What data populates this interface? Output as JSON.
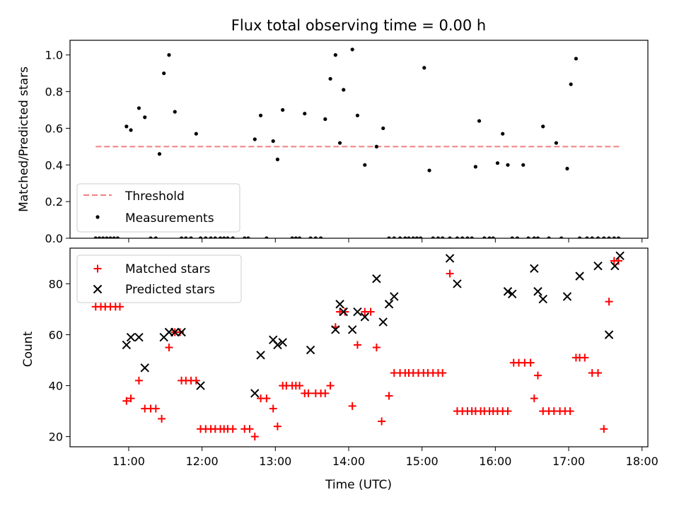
{
  "chart_data": [
    {
      "type": "scatter",
      "title": "Flux total observing time = 0.00 h",
      "xlabel": "",
      "ylabel": "Matched/Predicted stars",
      "xlim": [
        10.2,
        18.08
      ],
      "ylim": [
        0,
        1.08
      ],
      "x_ticks": [
        11,
        12,
        13,
        14,
        15,
        16,
        17,
        18
      ],
      "y_ticks": [
        0.0,
        0.2,
        0.4,
        0.6,
        0.8,
        1.0
      ],
      "y_tick_labels": [
        "0.0",
        "0.2",
        "0.4",
        "0.6",
        "0.8",
        "1.0"
      ],
      "legend_position": "lower-left",
      "threshold": {
        "name": "Threshold",
        "value": 0.5,
        "x_range": [
          10.55,
          17.72
        ],
        "color": "#f08080"
      },
      "series": [
        {
          "name": "Measurements",
          "color": "#000000",
          "x": [
            10.55,
            10.6,
            10.65,
            10.7,
            10.75,
            10.8,
            10.85,
            10.97,
            11.03,
            11.14,
            11.22,
            11.3,
            11.37,
            11.42,
            11.48,
            11.55,
            11.63,
            11.72,
            11.78,
            11.85,
            11.92,
            11.98,
            12.05,
            12.12,
            12.18,
            12.25,
            12.3,
            12.35,
            12.42,
            12.58,
            12.63,
            12.72,
            12.8,
            12.88,
            12.97,
            13.03,
            13.1,
            13.23,
            13.28,
            13.33,
            13.4,
            13.48,
            13.55,
            13.62,
            13.68,
            13.75,
            13.82,
            13.88,
            13.93,
            14.05,
            14.12,
            14.22,
            14.38,
            14.47,
            14.55,
            14.62,
            14.7,
            14.77,
            14.82,
            14.88,
            14.93,
            14.98,
            15.03,
            15.1,
            15.15,
            15.22,
            15.28,
            15.38,
            15.48,
            15.55,
            15.62,
            15.68,
            15.73,
            15.78,
            15.85,
            15.92,
            15.97,
            16.03,
            16.1,
            16.17,
            16.23,
            16.3,
            16.38,
            16.45,
            16.53,
            16.58,
            16.65,
            16.73,
            16.83,
            16.9,
            16.98,
            17.03,
            17.1,
            17.15,
            17.25,
            17.32,
            17.4,
            17.48,
            17.55,
            17.62,
            17.68
          ],
          "y": [
            0,
            0,
            0,
            0,
            0,
            0,
            0,
            0.61,
            0.59,
            0.71,
            0.66,
            0,
            0,
            0.46,
            0.9,
            1.0,
            0.69,
            0,
            0,
            0,
            0.57,
            0,
            0,
            0,
            0,
            0,
            0,
            0,
            0,
            0,
            0,
            0.54,
            0.67,
            0,
            0.53,
            0.43,
            0.7,
            0,
            0,
            0,
            0.68,
            0,
            0,
            0,
            0.65,
            0.87,
            1.0,
            0.52,
            0.81,
            1.03,
            0.67,
            0.4,
            0.5,
            0.6,
            0,
            0,
            0,
            0,
            0,
            0,
            0,
            0,
            0.93,
            0.37,
            0,
            0,
            0,
            0,
            0,
            0,
            0,
            0,
            0.39,
            0.64,
            0,
            0,
            0,
            0.41,
            0.57,
            0.4,
            0,
            0,
            0.4,
            0,
            0,
            0,
            0.61,
            0,
            0.52,
            0,
            0.38,
            0.84,
            0.98,
            0,
            0,
            0,
            0,
            0,
            0,
            0,
            0
          ]
        }
      ]
    },
    {
      "type": "scatter",
      "title": "",
      "xlabel": "Time (UTC)",
      "ylabel": "Count",
      "xlim": [
        10.2,
        18.08
      ],
      "ylim": [
        16,
        94
      ],
      "x_ticks": [
        11,
        12,
        13,
        14,
        15,
        16,
        17,
        18
      ],
      "x_tick_labels": [
        "11:00",
        "12:00",
        "13:00",
        "14:00",
        "15:00",
        "16:00",
        "17:00",
        "18:00"
      ],
      "y_ticks": [
        20,
        40,
        60,
        80
      ],
      "y_tick_labels": [
        "20",
        "40",
        "60",
        "80"
      ],
      "legend_position": "upper-left",
      "series": [
        {
          "name": "Matched stars",
          "marker": "plus",
          "color": "#ff0000",
          "x": [
            10.55,
            10.62,
            10.68,
            10.75,
            10.82,
            10.88,
            10.97,
            11.03,
            11.14,
            11.22,
            11.3,
            11.37,
            11.45,
            11.55,
            11.63,
            11.7,
            11.72,
            11.78,
            11.85,
            11.92,
            11.98,
            12.05,
            12.12,
            12.18,
            12.25,
            12.3,
            12.35,
            12.42,
            12.58,
            12.65,
            12.72,
            12.8,
            12.88,
            12.97,
            13.03,
            13.1,
            13.15,
            13.23,
            13.28,
            13.33,
            13.4,
            13.45,
            13.55,
            13.62,
            13.68,
            13.75,
            13.82,
            13.88,
            13.95,
            14.05,
            14.12,
            14.22,
            14.3,
            14.38,
            14.45,
            14.55,
            14.62,
            14.7,
            14.77,
            14.82,
            14.88,
            14.95,
            15.02,
            15.08,
            15.15,
            15.22,
            15.28,
            15.38,
            15.48,
            15.55,
            15.62,
            15.68,
            15.73,
            15.8,
            15.85,
            15.92,
            15.97,
            16.03,
            16.1,
            16.17,
            16.25,
            16.32,
            16.4,
            16.48,
            16.53,
            16.58,
            16.65,
            16.73,
            16.8,
            16.88,
            16.95,
            17.02,
            17.1,
            17.15,
            17.22,
            17.32,
            17.4,
            17.48,
            17.55,
            17.62,
            17.68
          ],
          "y": [
            71,
            71,
            71,
            71,
            71,
            71,
            34,
            35,
            42,
            31,
            31,
            31,
            27,
            55,
            61,
            61,
            42,
            42,
            42,
            42,
            23,
            23,
            23,
            23,
            23,
            23,
            23,
            23,
            23,
            23,
            20,
            35,
            35,
            31,
            24,
            40,
            40,
            40,
            40,
            40,
            37,
            37,
            37,
            37,
            37,
            40,
            63,
            69,
            69,
            32,
            56,
            69,
            69,
            55,
            26,
            36,
            45,
            45,
            45,
            45,
            45,
            45,
            45,
            45,
            45,
            45,
            45,
            84,
            30,
            30,
            30,
            30,
            30,
            30,
            30,
            30,
            30,
            30,
            30,
            30,
            49,
            49,
            49,
            49,
            35,
            44,
            30,
            30,
            30,
            30,
            30,
            30,
            51,
            51,
            51,
            45,
            45,
            23,
            73,
            89,
            89
          ]
        },
        {
          "name": "Predicted stars",
          "marker": "x",
          "color": "#000000",
          "x": [
            10.97,
            11.03,
            11.14,
            11.22,
            11.48,
            11.55,
            11.63,
            11.72,
            11.98,
            12.72,
            12.8,
            12.97,
            13.03,
            13.1,
            13.48,
            13.82,
            13.88,
            13.93,
            14.05,
            14.12,
            14.22,
            14.38,
            14.47,
            14.55,
            14.62,
            15.38,
            15.48,
            16.17,
            16.23,
            16.53,
            16.58,
            16.65,
            16.98,
            17.15,
            17.4,
            17.55,
            17.63,
            17.7
          ],
          "y": [
            56,
            59,
            59,
            47,
            59,
            61,
            61,
            61,
            40,
            37,
            52,
            58,
            56,
            57,
            54,
            62,
            72,
            69,
            62,
            69,
            67,
            82,
            65,
            72,
            75,
            90,
            80,
            77,
            76,
            86,
            77,
            74,
            75,
            83,
            87,
            60,
            87,
            91
          ]
        }
      ]
    }
  ]
}
